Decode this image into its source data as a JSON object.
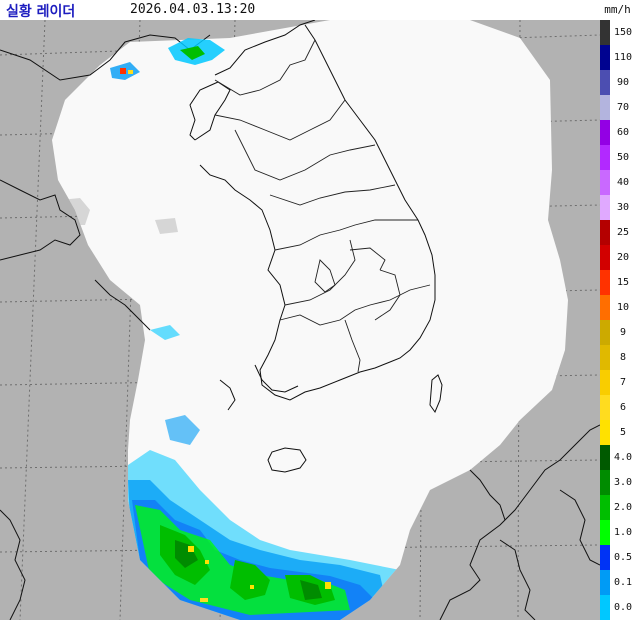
{
  "header": {
    "title": "실황 레이더",
    "timestamp": "2026.04.03.13:20",
    "unit": "mm/h"
  },
  "colors": {
    "outside": "#b2b2b2",
    "coverage": "#f9f9f9",
    "coast": "#111111",
    "border": "#222222",
    "title": "#1d1dbf"
  },
  "legend": {
    "levels": [
      {
        "label": "150",
        "color": "#333333"
      },
      {
        "label": "110",
        "color": "#000390"
      },
      {
        "label": "90",
        "color": "#4c4eb1"
      },
      {
        "label": "70",
        "color": "#b3b4de"
      },
      {
        "label": "60",
        "color": "#9300e4"
      },
      {
        "label": "50",
        "color": "#b229ff"
      },
      {
        "label": "40",
        "color": "#c969ff"
      },
      {
        "label": "30",
        "color": "#e0a9ff"
      },
      {
        "label": "25",
        "color": "#b40000"
      },
      {
        "label": "20",
        "color": "#d20000"
      },
      {
        "label": "15",
        "color": "#ff3200"
      },
      {
        "label": "10",
        "color": "#ff6e00"
      },
      {
        "label": "9",
        "color": "#ccaa00"
      },
      {
        "label": "8",
        "color": "#e0b900"
      },
      {
        "label": "7",
        "color": "#f9cd00"
      },
      {
        "label": "6",
        "color": "#ffdc1f"
      },
      {
        "label": "5",
        "color": "#ffe100"
      },
      {
        "label": "4.0",
        "color": "#005a00"
      },
      {
        "label": "3.0",
        "color": "#008c00"
      },
      {
        "label": "2.0",
        "color": "#00be00"
      },
      {
        "label": "1.0",
        "color": "#00ff00"
      },
      {
        "label": "0.5",
        "color": "#0033f5"
      },
      {
        "label": "0.1",
        "color": "#009bf5"
      },
      {
        "label": "0.0",
        "color": "#00c8ff"
      }
    ]
  }
}
